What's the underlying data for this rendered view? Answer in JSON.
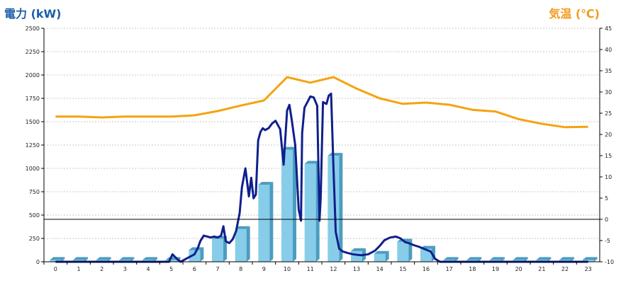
{
  "chart_data": {
    "type": "bar",
    "ylabel": "電力 (kW)",
    "y2label": "気温 (℃)",
    "xlabel": "",
    "categories": [
      "0",
      "1",
      "2",
      "3",
      "4",
      "5",
      "6",
      "7",
      "8",
      "9",
      "10",
      "11",
      "12",
      "13",
      "14",
      "15",
      "16",
      "17",
      "18",
      "19",
      "20",
      "21",
      "22",
      "23"
    ],
    "ylim": [
      0,
      2500
    ],
    "y2lim": [
      -10,
      45
    ],
    "yticks": [
      0,
      250,
      500,
      750,
      1000,
      1250,
      1500,
      1750,
      2000,
      2250,
      2500
    ],
    "y2ticks": [
      -10,
      -5,
      0,
      5,
      10,
      15,
      20,
      25,
      30,
      35,
      40,
      45
    ],
    "grid": true,
    "bar_values": [
      20,
      20,
      20,
      20,
      20,
      20,
      125,
      245,
      350,
      825,
      1200,
      1050,
      1135,
      115,
      85,
      215,
      140,
      20,
      20,
      20,
      20,
      20,
      20,
      20
    ],
    "power_line": {
      "x": [
        0,
        1,
        2,
        3,
        4,
        4.9,
        5.05,
        5.25,
        5.4,
        5.7,
        6,
        6.15,
        6.25,
        6.4,
        6.55,
        6.7,
        6.85,
        7,
        7.15,
        7.25,
        7.35,
        7.5,
        7.65,
        7.8,
        7.95,
        8.05,
        8.2,
        8.35,
        8.45,
        8.55,
        8.65,
        8.75,
        8.85,
        8.95,
        9.05,
        9.2,
        9.35,
        9.5,
        9.7,
        9.85,
        10,
        10.1,
        10.2,
        10.35,
        10.5,
        10.6,
        10.65,
        10.75,
        10.9,
        11,
        11.15,
        11.3,
        11.4,
        11.45,
        11.55,
        11.7,
        11.8,
        11.9,
        12,
        12.1,
        12.25,
        12.4,
        12.6,
        12.85,
        13.2,
        13.5,
        13.8,
        14,
        14.2,
        14.45,
        14.7,
        14.9,
        15,
        15.1,
        15.25,
        15.45,
        15.7,
        15.9,
        16,
        16.2,
        16.4,
        16.6,
        16.8,
        17,
        18,
        19,
        20,
        21,
        22,
        23
      ],
      "y": [
        0,
        0,
        0,
        0,
        0,
        0,
        80,
        30,
        0,
        40,
        80,
        150,
        220,
        280,
        270,
        260,
        270,
        260,
        280,
        380,
        220,
        200,
        240,
        330,
        520,
        800,
        1000,
        700,
        900,
        680,
        720,
        1300,
        1390,
        1430,
        1410,
        1430,
        1480,
        1510,
        1420,
        1040,
        1620,
        1680,
        1520,
        1250,
        560,
        440,
        1380,
        1650,
        1720,
        1770,
        1760,
        1670,
        440,
        680,
        1710,
        1690,
        1780,
        1800,
        1020,
        320,
        140,
        110,
        95,
        80,
        70,
        80,
        120,
        170,
        230,
        260,
        270,
        250,
        230,
        210,
        200,
        180,
        160,
        140,
        130,
        110,
        30,
        0,
        0,
        0,
        0,
        0,
        0,
        0,
        0,
        0
      ]
    },
    "temperature_line": {
      "x": [
        0,
        1,
        2,
        3,
        4,
        5,
        6,
        7,
        8,
        9,
        10,
        11,
        12,
        13,
        14,
        15,
        16,
        17,
        18,
        19,
        20,
        21,
        22,
        23
      ],
      "y": [
        24.2,
        24.2,
        24,
        24.2,
        24.2,
        24.2,
        24.5,
        25.5,
        26.8,
        28,
        33.5,
        32.2,
        33.5,
        30.8,
        28.5,
        27.2,
        27.5,
        27,
        25.8,
        25.4,
        23.6,
        22.5,
        21.7,
        21.8
      ]
    },
    "colors": {
      "bar": "#87cde9",
      "bar_side": "#4c9cc0",
      "power_line": "#0f1f8c",
      "temperature_line": "#f5a30f",
      "ylabel": "#1a5fa8",
      "y2label": "#f39a1e"
    }
  }
}
